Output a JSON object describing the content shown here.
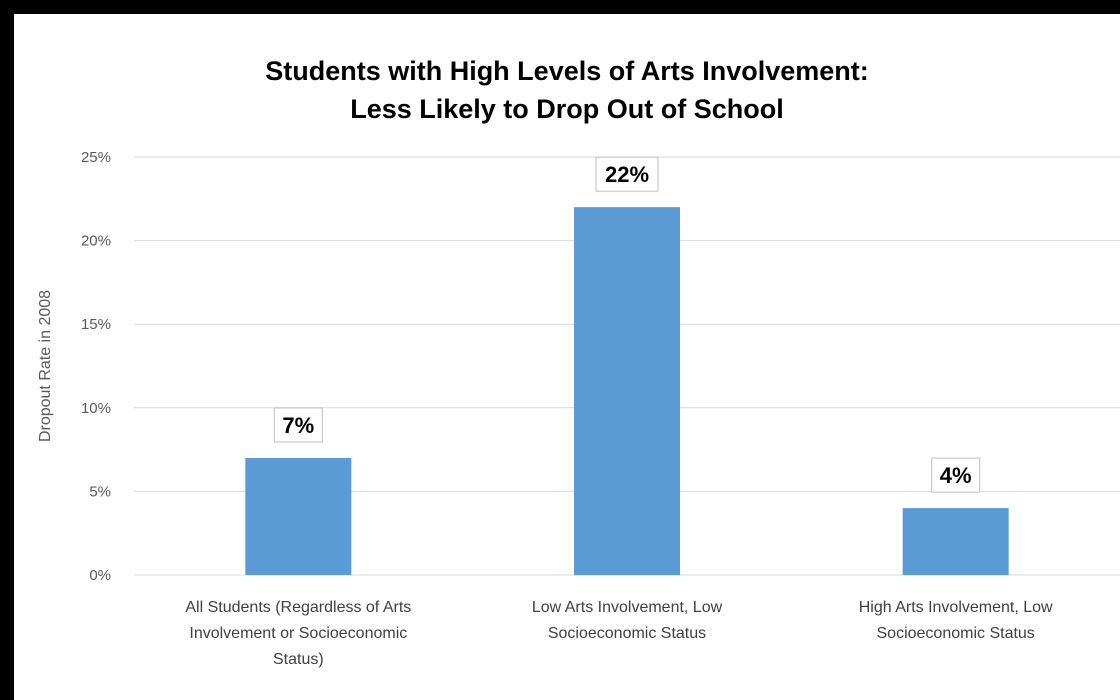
{
  "chart_data": {
    "type": "bar",
    "title_lines": [
      "Students with High Levels of Arts Involvement:",
      "Less Likely to Drop Out of School"
    ],
    "ylabel": "Dropout Rate in 2008",
    "xlabel": "",
    "ylim": [
      0,
      25
    ],
    "ytick_values": [
      0,
      5,
      10,
      15,
      20,
      25
    ],
    "ytick_labels": [
      "0%",
      "5%",
      "10%",
      "15%",
      "20%",
      "25%"
    ],
    "categories": [
      [
        "All Students (Regardless of Arts",
        "Involvement or Socioeconomic",
        "Status)"
      ],
      [
        "Low Arts Involvement, Low",
        "Socioeconomic Status"
      ],
      [
        "High Arts Involvement, Low",
        "Socioeconomic Status"
      ]
    ],
    "values": [
      7,
      22,
      4
    ],
    "data_labels": [
      "7%",
      "22%",
      "4%"
    ],
    "grid": true,
    "legend": "none",
    "bar_color": "#5b9bd5",
    "grid_color": "#d9d9d9"
  }
}
